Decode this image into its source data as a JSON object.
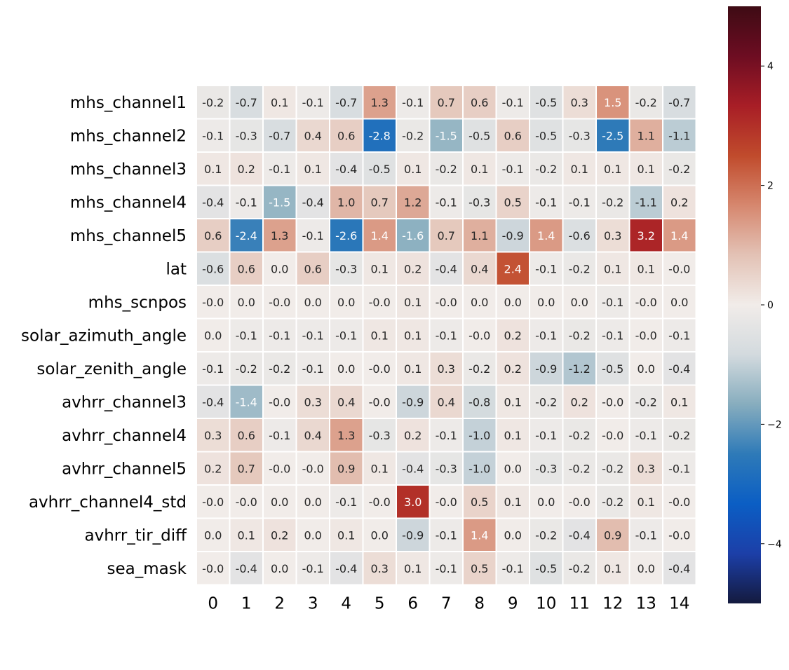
{
  "chart_data": {
    "type": "heatmap",
    "title": "",
    "xlabel": "",
    "ylabel": "",
    "rows": [
      "mhs_channel1",
      "mhs_channel2",
      "mhs_channel3",
      "mhs_channel4",
      "mhs_channel5",
      "lat",
      "mhs_scnpos",
      "solar_azimuth_angle",
      "solar_zenith_angle",
      "avhrr_channel3",
      "avhrr_channel4",
      "avhrr_channel5",
      "avhrr_channel4_std",
      "avhrr_tir_diff",
      "sea_mask"
    ],
    "columns": [
      "0",
      "1",
      "2",
      "3",
      "4",
      "5",
      "6",
      "7",
      "8",
      "9",
      "10",
      "11",
      "12",
      "13",
      "14"
    ],
    "values": [
      [
        "-0.2",
        "-0.7",
        "0.1",
        "-0.1",
        "-0.7",
        "1.3",
        "-0.1",
        "0.7",
        "0.6",
        "-0.1",
        "-0.5",
        "0.3",
        "1.5",
        "-0.2",
        "-0.7"
      ],
      [
        "-0.1",
        "-0.3",
        "-0.7",
        "0.4",
        "0.6",
        "-2.8",
        "-0.2",
        "-1.5",
        "-0.5",
        "0.6",
        "-0.5",
        "-0.3",
        "-2.5",
        "1.1",
        "-1.1"
      ],
      [
        "0.1",
        "0.2",
        "-0.1",
        "0.1",
        "-0.4",
        "-0.5",
        "0.1",
        "-0.2",
        "0.1",
        "-0.1",
        "-0.2",
        "0.1",
        "0.1",
        "0.1",
        "-0.2"
      ],
      [
        "-0.4",
        "-0.1",
        "-1.5",
        "-0.4",
        "1.0",
        "0.7",
        "1.2",
        "-0.1",
        "-0.3",
        "0.5",
        "-0.1",
        "-0.1",
        "-0.2",
        "-1.1",
        "0.2"
      ],
      [
        "0.6",
        "-2.4",
        "1.3",
        "-0.1",
        "-2.6",
        "1.4",
        "-1.6",
        "0.7",
        "1.1",
        "-0.9",
        "1.4",
        "-0.6",
        "0.3",
        "3.2",
        "1.4"
      ],
      [
        "-0.6",
        "0.6",
        "0.0",
        "0.6",
        "-0.3",
        "0.1",
        "0.2",
        "-0.4",
        "0.4",
        "2.4",
        "-0.1",
        "-0.2",
        "0.1",
        "0.1",
        "-0.0"
      ],
      [
        "-0.0",
        "0.0",
        "-0.0",
        "0.0",
        "0.0",
        "-0.0",
        "0.1",
        "-0.0",
        "0.0",
        "0.0",
        "0.0",
        "0.0",
        "-0.1",
        "-0.0",
        "0.0"
      ],
      [
        "0.0",
        "-0.1",
        "-0.1",
        "-0.1",
        "-0.1",
        "0.1",
        "0.1",
        "-0.1",
        "-0.0",
        "0.2",
        "-0.1",
        "-0.2",
        "-0.1",
        "-0.0",
        "-0.1"
      ],
      [
        "-0.1",
        "-0.2",
        "-0.2",
        "-0.1",
        "0.0",
        "-0.0",
        "0.1",
        "0.3",
        "-0.2",
        "0.2",
        "-0.9",
        "-1.2",
        "-0.5",
        "0.0",
        "-0.4"
      ],
      [
        "-0.4",
        "-1.4",
        "-0.0",
        "0.3",
        "0.4",
        "-0.0",
        "-0.9",
        "0.4",
        "-0.8",
        "0.1",
        "-0.2",
        "0.2",
        "-0.0",
        "-0.2",
        "0.1"
      ],
      [
        "0.3",
        "0.6",
        "-0.1",
        "0.4",
        "1.3",
        "-0.3",
        "0.2",
        "-0.1",
        "-1.0",
        "0.1",
        "-0.1",
        "-0.2",
        "-0.0",
        "-0.1",
        "-0.2"
      ],
      [
        "0.2",
        "0.7",
        "-0.0",
        "-0.0",
        "0.9",
        "0.1",
        "-0.4",
        "-0.3",
        "-1.0",
        "0.0",
        "-0.3",
        "-0.2",
        "-0.2",
        "0.3",
        "-0.1"
      ],
      [
        "-0.0",
        "-0.0",
        "0.0",
        "0.0",
        "-0.1",
        "-0.0",
        "3.0",
        "-0.0",
        "0.5",
        "0.1",
        "0.0",
        "-0.0",
        "-0.2",
        "0.1",
        "-0.0"
      ],
      [
        "0.0",
        "0.1",
        "0.2",
        "0.0",
        "0.1",
        "0.0",
        "-0.9",
        "-0.1",
        "1.4",
        "0.0",
        "-0.2",
        "-0.4",
        "0.9",
        "-0.1",
        "-0.0"
      ],
      [
        "-0.0",
        "-0.4",
        "0.0",
        "-0.1",
        "-0.4",
        "0.3",
        "0.1",
        "-0.1",
        "0.5",
        "-0.1",
        "-0.5",
        "-0.2",
        "0.1",
        "0.0",
        "-0.4"
      ]
    ],
    "colorbar": {
      "vmin": -5,
      "vmax": 5,
      "ticks": [
        {
          "value": -4,
          "label": "−4"
        },
        {
          "value": -2,
          "label": "−2"
        },
        {
          "value": 0,
          "label": "0"
        },
        {
          "value": 2,
          "label": "2"
        },
        {
          "value": 4,
          "label": "4"
        }
      ],
      "colormap": "diverging blue-white-red",
      "colors": [
        "#141a3e",
        "#1c3fa8",
        "#0b5ec4",
        "#2e7ab8",
        "#87adbe",
        "#d3dade",
        "#f1ece9",
        "#e3c2b5",
        "#d6876e",
        "#c04b2c",
        "#a81e26",
        "#6d0d22",
        "#3e0b14"
      ]
    },
    "legend": "right",
    "grid": false
  }
}
